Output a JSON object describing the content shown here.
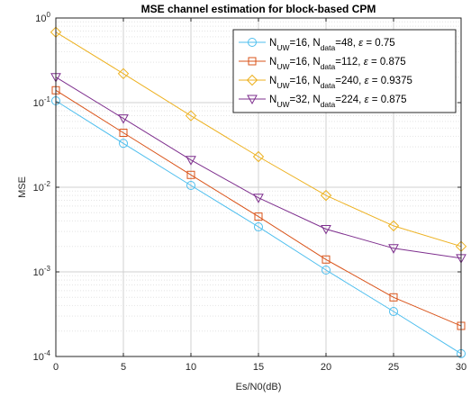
{
  "chart_data": {
    "type": "line",
    "title": "MSE channel estimation for block-based CPM",
    "xlabel": "Es/N0(dB)",
    "ylabel": "MSE",
    "yscale": "log",
    "xlim": [
      0,
      30
    ],
    "ylim": [
      0.0001,
      1
    ],
    "grid": true,
    "minor_grid": true,
    "legend_position": "top-right",
    "x": [
      0,
      5,
      10,
      15,
      20,
      25,
      30
    ],
    "x_ticks": [
      "0",
      "5",
      "10",
      "15",
      "20",
      "25",
      "30"
    ],
    "y_ticks": [
      {
        "value": 1,
        "base": "10",
        "exp": "0"
      },
      {
        "value": 0.1,
        "base": "10",
        "exp": "-1"
      },
      {
        "value": 0.01,
        "base": "10",
        "exp": "-2"
      },
      {
        "value": 0.001,
        "base": "10",
        "exp": "-3"
      },
      {
        "value": 0.0001,
        "base": "10",
        "exp": "-4"
      }
    ],
    "series": [
      {
        "name": "N_UW=16, N_data=48, ε = 0.75",
        "label_parts": [
          "N",
          "UW",
          "=16, N",
          "data",
          "=48, ",
          "ε",
          " = 0.75"
        ],
        "color": "#4DBEEE",
        "marker": "circle",
        "values": [
          0.105,
          0.033,
          0.0105,
          0.0034,
          0.00105,
          0.00034,
          0.000108
        ]
      },
      {
        "name": "N_UW=16, N_data=112, ε = 0.875",
        "label_parts": [
          "N",
          "UW",
          "=16, N",
          "data",
          "=112, ",
          "ε",
          " = 0.875"
        ],
        "color": "#D95319",
        "marker": "square",
        "values": [
          0.14,
          0.044,
          0.014,
          0.0045,
          0.0014,
          0.0005,
          0.00023
        ]
      },
      {
        "name": "N_UW=16, N_data=240, ε = 0.9375",
        "label_parts": [
          "N",
          "UW",
          "=16, N",
          "data",
          "=240, ",
          "ε",
          " = 0.9375"
        ],
        "color": "#EDB120",
        "marker": "diamond",
        "values": [
          0.68,
          0.22,
          0.07,
          0.023,
          0.008,
          0.0035,
          0.002
        ]
      },
      {
        "name": "N_UW=32, N_data=224, ε = 0.875",
        "label_parts": [
          "N",
          "UW",
          "=32, N",
          "data",
          "=224, ",
          "ε",
          " = 0.875"
        ],
        "color": "#7E2F8E",
        "marker": "triangle-down",
        "values": [
          0.2,
          0.065,
          0.021,
          0.0075,
          0.0032,
          0.0019,
          0.00145
        ]
      }
    ]
  }
}
